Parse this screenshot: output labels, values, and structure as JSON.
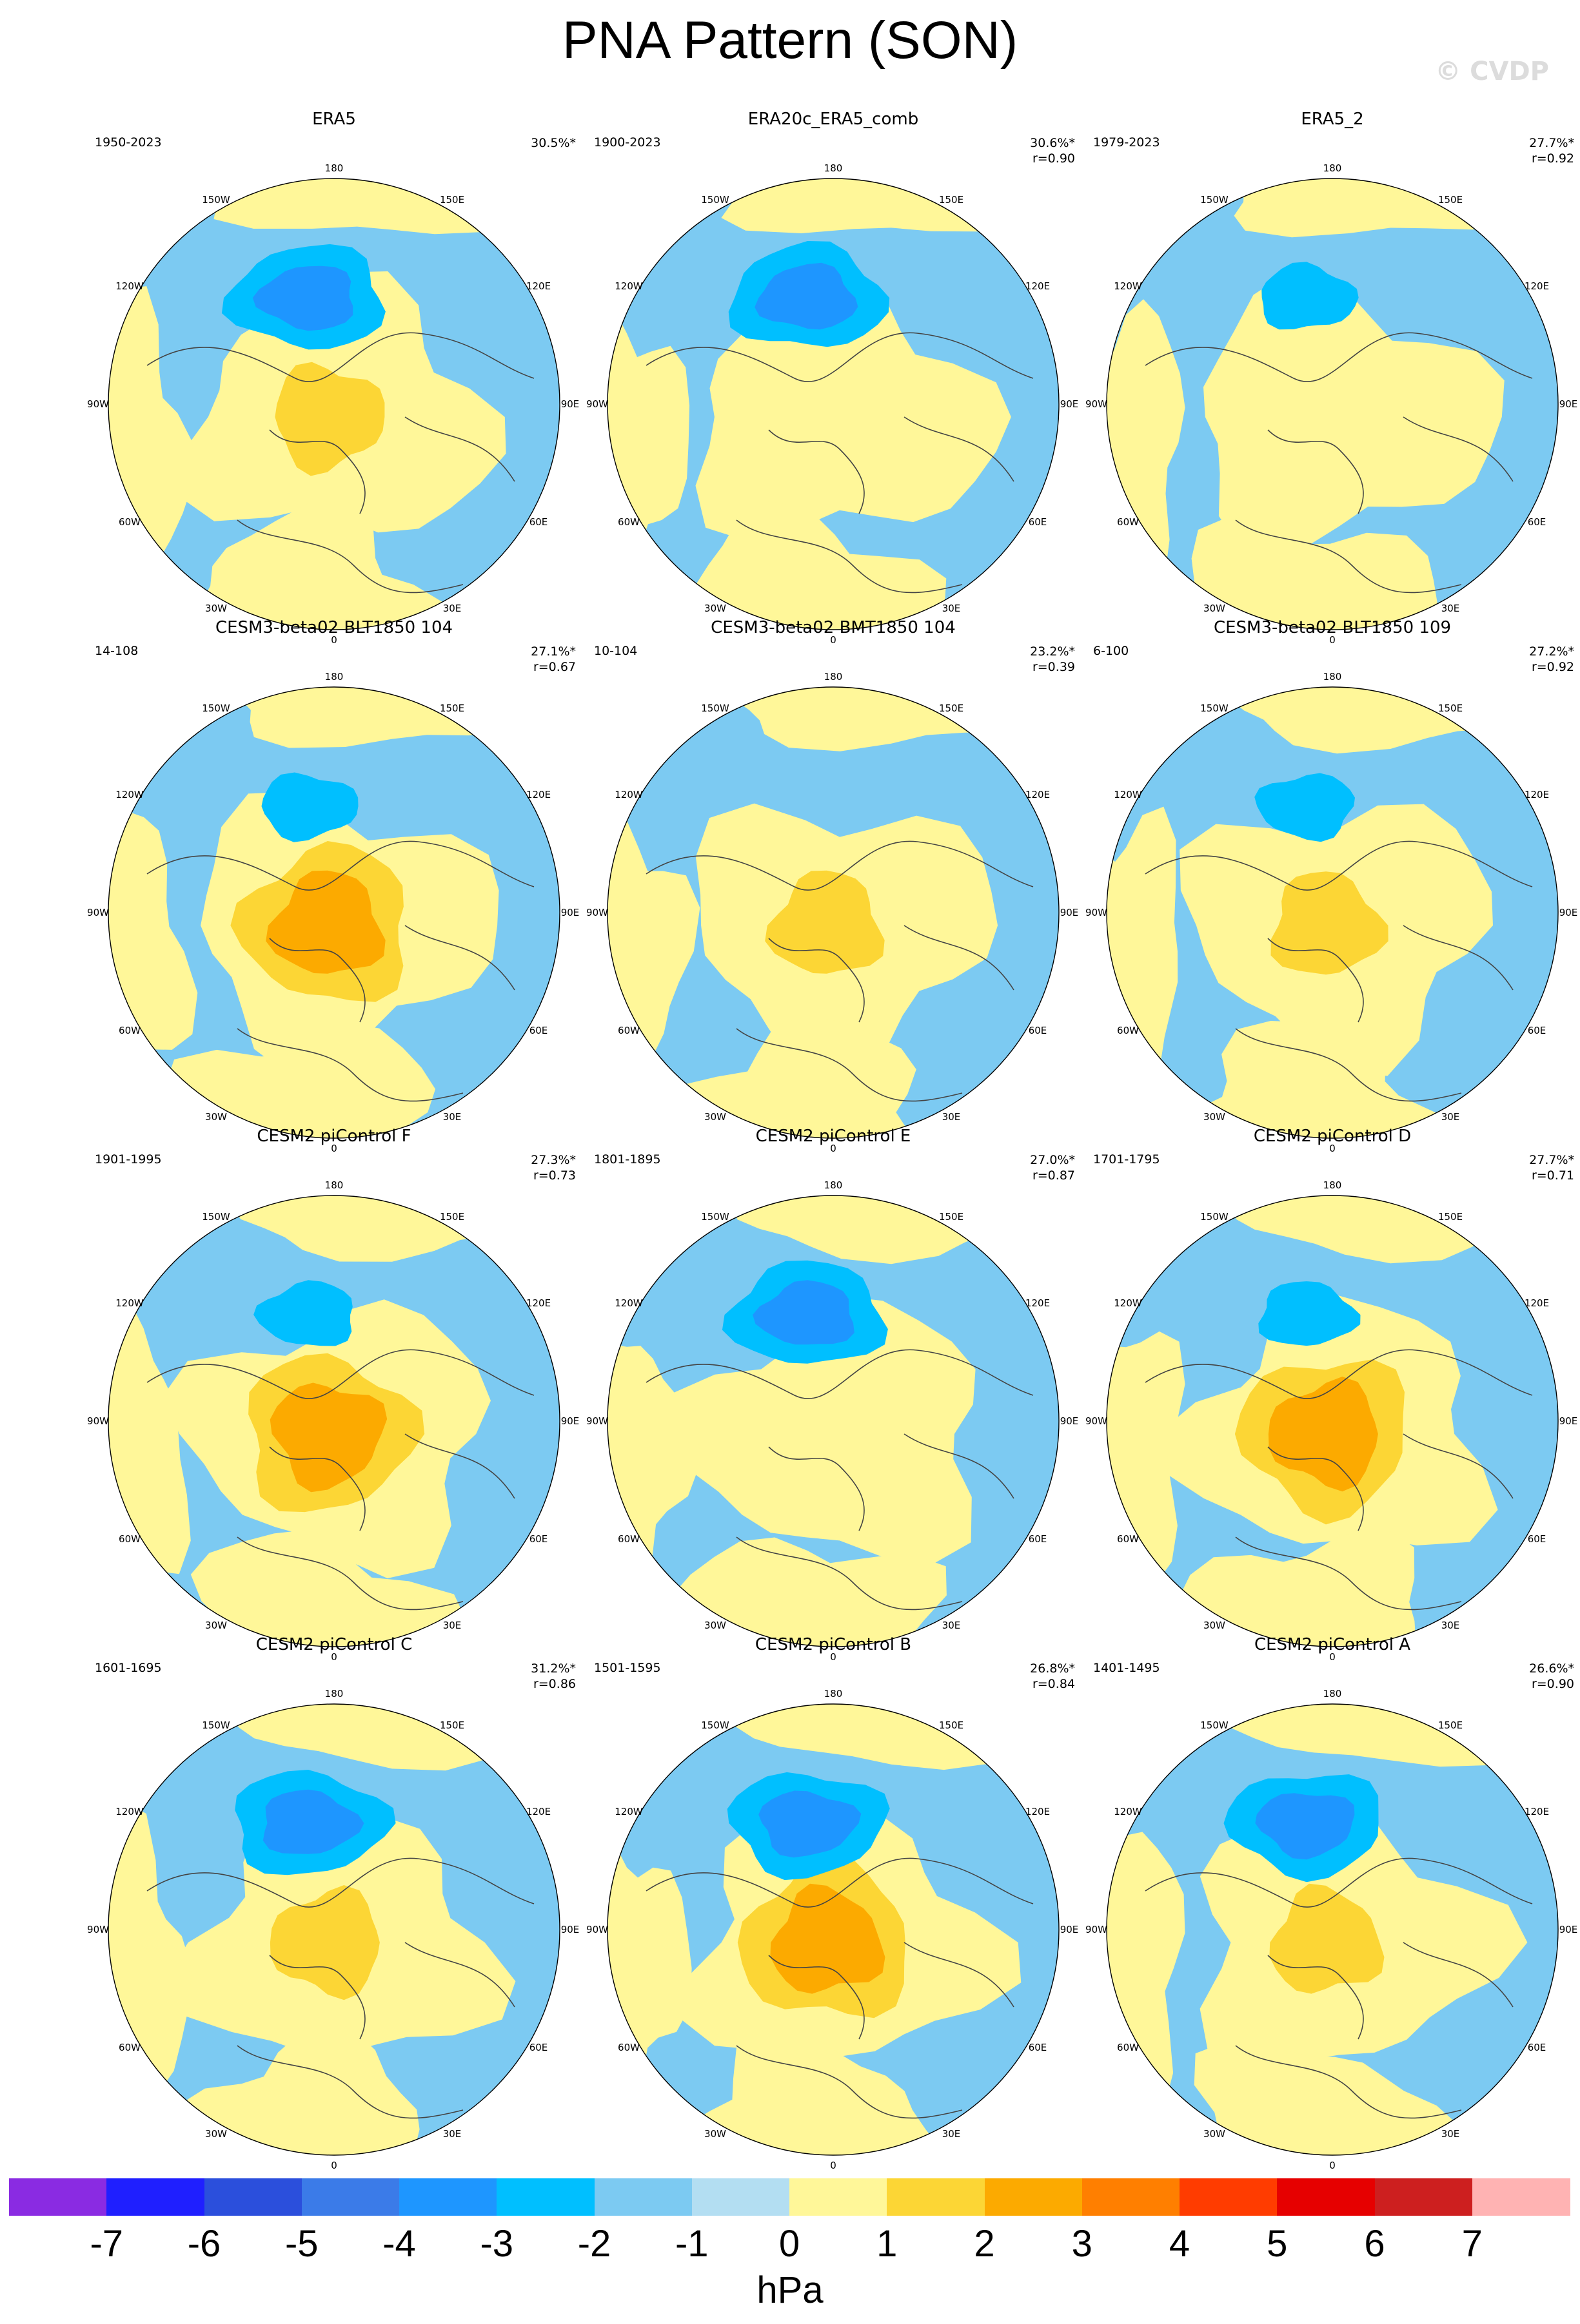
{
  "title": "PNA Pattern (SON)",
  "watermark": "© CVDP",
  "longitude_labels": [
    "180",
    "150E",
    "120E",
    "90E",
    "60E",
    "30E",
    "0",
    "30W",
    "60W",
    "90W",
    "120W",
    "150W"
  ],
  "panels": [
    {
      "title": "ERA5",
      "years": "1950-2023",
      "pct": "30.5%*",
      "r": "",
      "pattern": {
        "low": -3,
        "high": 2,
        "high_shift": 0
      }
    },
    {
      "title": "ERA20c_ERA5_comb",
      "years": "1900-2023",
      "pct": "30.6%*",
      "r": "r=0.90",
      "pattern": {
        "low": -3,
        "high": 0,
        "high_shift": 0
      }
    },
    {
      "title": "ERA5_2",
      "years": "1979-2023",
      "pct": "27.7%*",
      "r": "r=0.92",
      "pattern": {
        "low": -2,
        "high": 1,
        "high_shift": 0
      }
    },
    {
      "title": "CESM3-beta02 BLT1850 104",
      "years": "14-108",
      "pct": "27.1%*",
      "r": "r=0.67",
      "pattern": {
        "low": -2,
        "high": 3,
        "high_shift": 0
      }
    },
    {
      "title": "CESM3-beta02 BMT1850 104",
      "years": "10-104",
      "pct": "23.2%*",
      "r": "r=0.39",
      "pattern": {
        "low": -1,
        "high": 2,
        "high_shift": 0
      }
    },
    {
      "title": "CESM3-beta02 BLT1850 109",
      "years": "6-100",
      "pct": "27.2%*",
      "r": "r=0.92",
      "pattern": {
        "low": -2,
        "high": 2,
        "high_shift": 0
      }
    },
    {
      "title": "CESM2 piControl F",
      "years": "1901-1995",
      "pct": "27.3%*",
      "r": "r=0.73",
      "pattern": {
        "low": -2,
        "high": 3,
        "high_shift": 0
      }
    },
    {
      "title": "CESM2 piControl E",
      "years": "1801-1895",
      "pct": "27.0%*",
      "r": "r=0.87",
      "pattern": {
        "low": -3,
        "high": 1,
        "high_shift": 0
      }
    },
    {
      "title": "CESM2 piControl D",
      "years": "1701-1795",
      "pct": "27.7%*",
      "r": "r=0.71",
      "pattern": {
        "low": -2,
        "high": 3,
        "high_shift": 0
      }
    },
    {
      "title": "CESM2 piControl C",
      "years": "1601-1695",
      "pct": "31.2%*",
      "r": "r=0.86",
      "pattern": {
        "low": -3,
        "high": 2,
        "high_shift": 0
      }
    },
    {
      "title": "CESM2 piControl B",
      "years": "1501-1595",
      "pct": "26.8%*",
      "r": "r=0.84",
      "pattern": {
        "low": -3,
        "high": 3,
        "high_shift": 0
      }
    },
    {
      "title": "CESM2 piControl A",
      "years": "1401-1495",
      "pct": "26.6%*",
      "r": "r=0.90",
      "pattern": {
        "low": -3,
        "high": 2,
        "high_shift": 0
      }
    }
  ],
  "colorbar": {
    "units": "hPa",
    "tick_labels": [
      "-7",
      "-6",
      "-5",
      "-4",
      "-3",
      "-2",
      "-1",
      "0",
      "1",
      "2",
      "3",
      "4",
      "5",
      "6",
      "7"
    ],
    "colors": [
      "#8a2be2",
      "#1f1fff",
      "#2b4fdc",
      "#3b7be8",
      "#1e96ff",
      "#00bfff",
      "#7ccaf2",
      "#b3def2",
      "#fff799",
      "#fcd635",
      "#fcaa00",
      "#ff7f00",
      "#ff3c00",
      "#e60000",
      "#cd1f1f",
      "#ffb3b3"
    ]
  }
}
